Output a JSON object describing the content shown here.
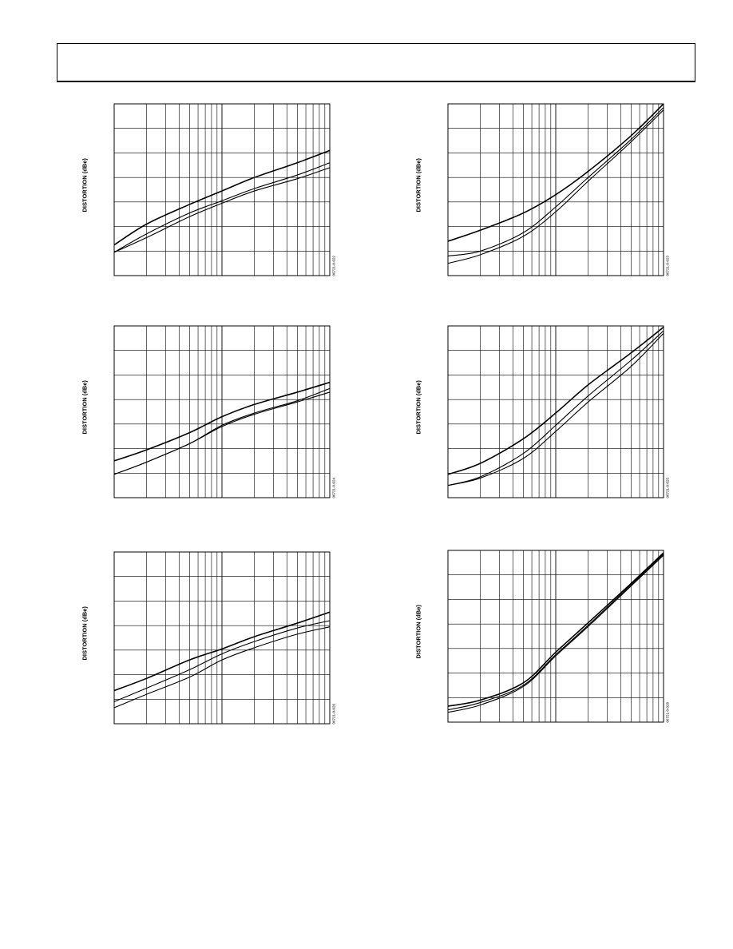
{
  "page": {
    "header_text": ""
  },
  "chart_data": [
    {
      "id": "c1",
      "type": "line",
      "x_scale": "log",
      "xlim": [
        1,
        100
      ],
      "ylim": [
        0,
        7
      ],
      "ylabel": "DISTORTION (dBe)",
      "figure_id": "06721-0-022",
      "grid": true,
      "series": [
        {
          "name": "",
          "x": [
            1,
            2,
            5,
            10,
            20,
            50,
            100
          ],
          "y": [
            1.25,
            2.1,
            2.9,
            3.45,
            4.0,
            4.6,
            5.1
          ]
        },
        {
          "name": "",
          "x": [
            1,
            2,
            5,
            10,
            20,
            50,
            100
          ],
          "y": [
            0.95,
            1.7,
            2.55,
            3.05,
            3.55,
            4.1,
            4.6
          ]
        },
        {
          "name": "",
          "x": [
            1,
            2,
            5,
            10,
            20,
            50,
            100
          ],
          "y": [
            0.95,
            1.55,
            2.4,
            2.95,
            3.45,
            3.95,
            4.4
          ]
        }
      ]
    },
    {
      "id": "c2",
      "type": "line",
      "x_scale": "log",
      "xlim": [
        1,
        100
      ],
      "ylim": [
        0,
        7
      ],
      "ylabel": "DISTORTION (dBe)",
      "figure_id": "06721-0-023",
      "grid": true,
      "series": [
        {
          "name": "",
          "x": [
            1,
            2,
            5,
            10,
            20,
            50,
            100
          ],
          "y": [
            1.4,
            1.85,
            2.55,
            3.3,
            4.25,
            5.7,
            7.0
          ]
        },
        {
          "name": "",
          "x": [
            1,
            2,
            5,
            10,
            20,
            50,
            100
          ],
          "y": [
            0.8,
            1.0,
            1.75,
            2.8,
            4.0,
            5.55,
            6.85
          ]
        },
        {
          "name": "",
          "x": [
            1,
            2,
            5,
            10,
            20,
            50,
            100
          ],
          "y": [
            0.5,
            0.85,
            1.6,
            2.6,
            3.85,
            5.45,
            6.75
          ]
        }
      ]
    },
    {
      "id": "c3",
      "type": "line",
      "x_scale": "log",
      "xlim": [
        1,
        100
      ],
      "ylim": [
        0,
        7
      ],
      "ylabel": "DISTORTION (dBe)",
      "figure_id": "06721-0-024",
      "grid": true,
      "series": [
        {
          "name": "",
          "x": [
            1,
            2,
            5,
            10,
            20,
            50,
            100
          ],
          "y": [
            1.5,
            1.95,
            2.65,
            3.3,
            3.8,
            4.3,
            4.7
          ]
        },
        {
          "name": "",
          "x": [
            1,
            2,
            5,
            10,
            20,
            50,
            100
          ],
          "y": [
            0.95,
            1.45,
            2.2,
            2.95,
            3.45,
            3.95,
            4.45
          ]
        },
        {
          "name": "",
          "x": [
            1,
            2,
            5,
            10,
            20,
            50,
            100
          ],
          "y": [
            0.95,
            1.45,
            2.2,
            2.9,
            3.4,
            3.9,
            4.3
          ]
        }
      ]
    },
    {
      "id": "c4",
      "type": "line",
      "x_scale": "log",
      "xlim": [
        1,
        100
      ],
      "ylim": [
        0,
        7
      ],
      "ylabel": "DISTORTION (dBe)",
      "figure_id": "06721-0-025",
      "grid": true,
      "series": [
        {
          "name": "",
          "x": [
            1,
            2,
            5,
            10,
            20,
            50,
            100
          ],
          "y": [
            0.95,
            1.4,
            2.4,
            3.45,
            4.6,
            5.9,
            6.95
          ]
        },
        {
          "name": "",
          "x": [
            1,
            2,
            5,
            10,
            20,
            50,
            100
          ],
          "y": [
            0.5,
            0.85,
            1.8,
            2.95,
            4.15,
            5.6,
            6.8
          ]
        },
        {
          "name": "",
          "x": [
            1,
            2,
            5,
            10,
            20,
            50,
            100
          ],
          "y": [
            0.5,
            0.8,
            1.6,
            2.7,
            3.9,
            5.35,
            6.7
          ]
        }
      ]
    },
    {
      "id": "c5",
      "type": "line",
      "x_scale": "log",
      "xlim": [
        1,
        100
      ],
      "ylim": [
        0,
        7
      ],
      "ylabel": "DISTORTION (dBe)",
      "figure_id": "06721-0-026",
      "grid": true,
      "series": [
        {
          "name": "",
          "x": [
            1,
            2,
            5,
            10,
            20,
            50,
            100
          ],
          "y": [
            1.35,
            1.85,
            2.6,
            3.05,
            3.55,
            4.1,
            4.55
          ]
        },
        {
          "name": "",
          "x": [
            1,
            2,
            5,
            10,
            20,
            50,
            100
          ],
          "y": [
            0.9,
            1.45,
            2.2,
            2.85,
            3.35,
            3.9,
            4.2
          ]
        },
        {
          "name": "",
          "x": [
            1,
            2,
            5,
            10,
            20,
            50,
            100
          ],
          "y": [
            0.65,
            1.2,
            1.9,
            2.6,
            3.1,
            3.65,
            3.95
          ]
        }
      ]
    },
    {
      "id": "c6",
      "type": "line",
      "x_scale": "log",
      "xlim": [
        1,
        100
      ],
      "ylim": [
        0,
        7
      ],
      "ylabel": "DISTORTION (dBe)",
      "figure_id": "06721-0-028",
      "grid": true,
      "series": [
        {
          "name": "",
          "x": [
            1,
            2,
            5,
            10,
            20,
            50,
            100
          ],
          "y": [
            0.65,
            0.9,
            1.6,
            2.85,
            4.05,
            5.65,
            6.9
          ]
        },
        {
          "name": "",
          "x": [
            1,
            2,
            5,
            10,
            20,
            50,
            100
          ],
          "y": [
            0.5,
            0.8,
            1.5,
            2.75,
            3.95,
            5.6,
            6.85
          ]
        },
        {
          "name": "",
          "x": [
            1,
            2,
            5,
            10,
            20,
            50,
            100
          ],
          "y": [
            0.4,
            0.7,
            1.45,
            2.7,
            3.9,
            5.55,
            6.8
          ]
        }
      ]
    }
  ]
}
